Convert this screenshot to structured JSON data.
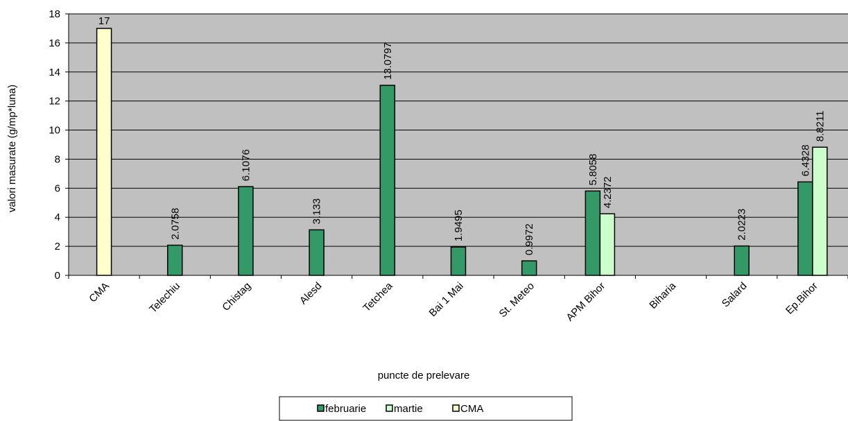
{
  "chart_data": {
    "type": "bar",
    "title": "",
    "xlabel": "puncte de prelevare",
    "ylabel": "valori masurate (g/mp*luna)",
    "ylim": [
      0,
      18
    ],
    "yticks": [
      0,
      2,
      4,
      6,
      8,
      10,
      12,
      14,
      16,
      18
    ],
    "grid": true,
    "legend_position": "bottom",
    "plot_background": "#c0c0c0",
    "categories": [
      "CMA",
      "Telechiu",
      "Chistag",
      "Alesd",
      "Tetchea",
      "Bai 1 Mai",
      "St. Meteo",
      "APM Bihor",
      "Biharia",
      "Salard",
      "Ep.Bihor"
    ],
    "series": [
      {
        "name": "februarie",
        "color": "#339966",
        "values": [
          null,
          2.0758,
          6.1076,
          3.133,
          13.0797,
          1.9495,
          0.9972,
          5.8058,
          null,
          2.0223,
          6.4328
        ],
        "labels": [
          null,
          "2.0758",
          "6.1076",
          "3.133",
          "13.0797",
          "1.9495",
          "0.9972",
          "5.8058",
          null,
          "2.0223",
          "6.4328"
        ]
      },
      {
        "name": "martie",
        "color": "#ccffcc",
        "values": [
          null,
          null,
          null,
          null,
          null,
          null,
          null,
          4.2372,
          null,
          null,
          8.8211
        ],
        "labels": [
          null,
          null,
          null,
          null,
          null,
          null,
          null,
          "4.2372",
          null,
          null,
          "8.8211"
        ]
      },
      {
        "name": "CMA",
        "color": "#ffffcc",
        "values": [
          17,
          null,
          null,
          null,
          null,
          null,
          null,
          null,
          null,
          null,
          null
        ],
        "labels": [
          "17",
          null,
          null,
          null,
          null,
          null,
          null,
          null,
          null,
          null,
          null
        ]
      }
    ]
  }
}
